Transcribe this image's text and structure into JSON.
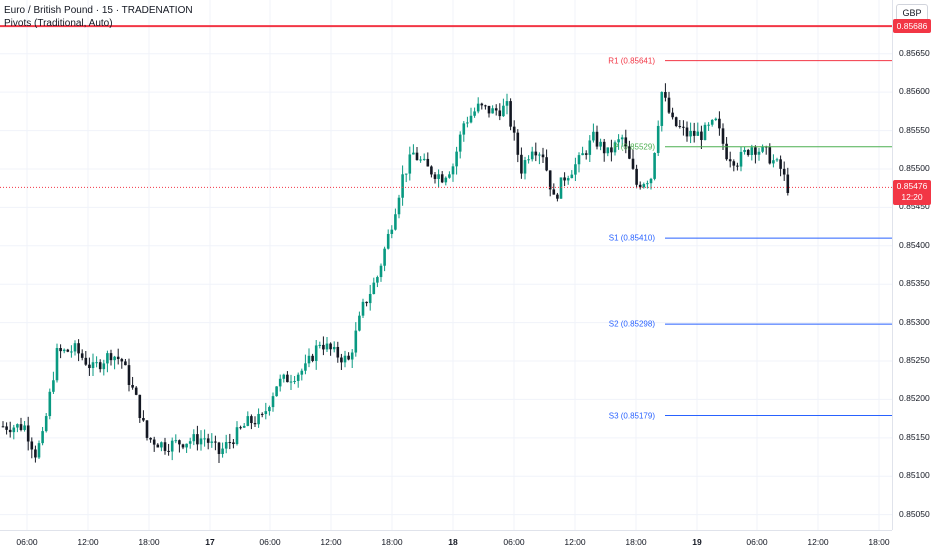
{
  "legend": {
    "symbol_line": "Euro / British Pound · 15 · TRADENATION",
    "indicator_line": "Pivots (Traditional, Auto)"
  },
  "currency_button": "GBP",
  "price_axis": {
    "ticks": [
      "0.85650",
      "0.85600",
      "0.85550",
      "0.85500",
      "0.85450",
      "0.85400",
      "0.85350",
      "0.85300",
      "0.85250",
      "0.85200",
      "0.85150",
      "0.85100",
      "0.85050"
    ]
  },
  "time_axis": {
    "labels": [
      {
        "text": "06:00",
        "bold": false
      },
      {
        "text": "12:00",
        "bold": false
      },
      {
        "text": "18:00",
        "bold": false
      },
      {
        "text": "17",
        "bold": true
      },
      {
        "text": "06:00",
        "bold": false
      },
      {
        "text": "12:00",
        "bold": false
      },
      {
        "text": "18:00",
        "bold": false
      },
      {
        "text": "18",
        "bold": true
      },
      {
        "text": "06:00",
        "bold": false
      },
      {
        "text": "12:00",
        "bold": false
      },
      {
        "text": "18:00",
        "bold": false
      },
      {
        "text": "19",
        "bold": true
      },
      {
        "text": "06:00",
        "bold": false
      },
      {
        "text": "12:00",
        "bold": false
      },
      {
        "text": "18:00",
        "bold": false
      }
    ]
  },
  "price_badges": {
    "red_line": {
      "label": "0.85686",
      "color": "#f23645"
    },
    "current": {
      "price_label": "0.85476",
      "countdown": "12:20",
      "color": "#f23645"
    }
  },
  "colors": {
    "up": "#089981",
    "down": "#131722",
    "grid": "#f0f3fa",
    "pivot_r": "#f23645",
    "pivot_p": "#4caf50",
    "pivot_s": "#2962ff",
    "current_line": "#f23645"
  },
  "chart_data": {
    "type": "candlestick",
    "title": "Euro / British Pound · 15 · TRADENATION",
    "ylim": [
      0.8503,
      0.8572
    ],
    "red_line": 0.85686,
    "current_price": 0.85476,
    "pivots": [
      {
        "label": "R1 (0.85641)",
        "value": 0.85641,
        "kind": "r"
      },
      {
        "label": "P (0.85529)",
        "value": 0.85529,
        "kind": "p"
      },
      {
        "label": "S1 (0.85410)",
        "value": 0.8541,
        "kind": "s"
      },
      {
        "label": "S2 (0.85298)",
        "value": 0.85298,
        "kind": "s"
      },
      {
        "label": "S3 (0.85179)",
        "value": 0.85179,
        "kind": "s"
      }
    ],
    "price_path_anchors": [
      [
        0,
        0.85165
      ],
      [
        6,
        0.85165
      ],
      [
        9,
        0.8513
      ],
      [
        11,
        0.8515
      ],
      [
        15,
        0.8526
      ],
      [
        20,
        0.85265
      ],
      [
        25,
        0.8524
      ],
      [
        30,
        0.8526
      ],
      [
        33,
        0.8525
      ],
      [
        37,
        0.852
      ],
      [
        40,
        0.8515
      ],
      [
        45,
        0.8514
      ],
      [
        50,
        0.85145
      ],
      [
        56,
        0.8515
      ],
      [
        60,
        0.8513
      ],
      [
        64,
        0.8515
      ],
      [
        68,
        0.8517
      ],
      [
        72,
        0.85175
      ],
      [
        76,
        0.8522
      ],
      [
        80,
        0.8523
      ],
      [
        84,
        0.8524
      ],
      [
        88,
        0.85275
      ],
      [
        92,
        0.8526
      ],
      [
        96,
        0.8525
      ],
      [
        100,
        0.8532
      ],
      [
        104,
        0.8536
      ],
      [
        108,
        0.8543
      ],
      [
        111,
        0.8549
      ],
      [
        114,
        0.8552
      ],
      [
        118,
        0.855
      ],
      [
        122,
        0.8549
      ],
      [
        125,
        0.85505
      ],
      [
        128,
        0.8556
      ],
      [
        132,
        0.8558
      ],
      [
        136,
        0.85575
      ],
      [
        140,
        0.8558
      ],
      [
        144,
        0.855
      ],
      [
        147,
        0.8553
      ],
      [
        150,
        0.8552
      ],
      [
        153,
        0.8546
      ],
      [
        156,
        0.8549
      ],
      [
        160,
        0.8551
      ],
      [
        164,
        0.8554
      ],
      [
        168,
        0.8552
      ],
      [
        172,
        0.8554
      ],
      [
        176,
        0.8548
      ],
      [
        180,
        0.8549
      ],
      [
        183,
        0.856
      ],
      [
        186,
        0.8556
      ],
      [
        190,
        0.85545
      ],
      [
        194,
        0.85545
      ],
      [
        198,
        0.8556
      ],
      [
        201,
        0.8552
      ],
      [
        204,
        0.8551
      ],
      [
        208,
        0.8553
      ],
      [
        212,
        0.8552
      ],
      [
        216,
        0.855
      ],
      [
        218,
        0.85476
      ]
    ]
  }
}
